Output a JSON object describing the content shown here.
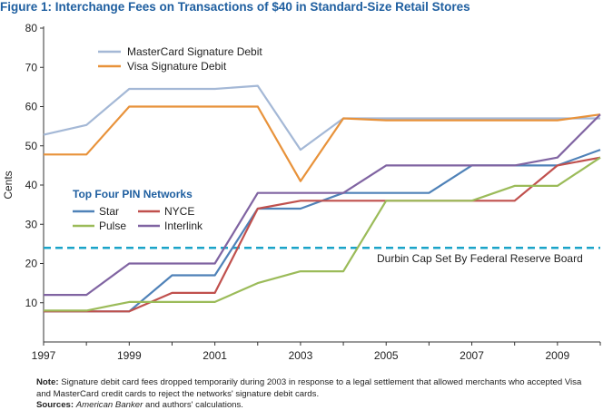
{
  "title": "Figure 1: Interchange Fees on Transactions of $40 in Standard-Size Retail Stores",
  "note_label": "Note:",
  "note_text": "Signature debit card fees dropped temporarily during 2003 in response to a legal settlement that allowed merchants who accepted Visa and MasterCard credit cards to reject the networks' signature debit cards.",
  "sources_label": "Sources:",
  "sources_italic": "American Banker",
  "sources_rest": "and authors' calculations.",
  "colors": {
    "mastercard": "#a4b8d6",
    "visa": "#e8923a",
    "star": "#4f82b8",
    "nyce": "#c0504d",
    "pulse": "#9bbb59",
    "interlink": "#8064a2",
    "durbin": "#1aa3c8",
    "axis": "#333333",
    "legend_title": "#1f5fa0"
  },
  "chart_data": {
    "type": "line",
    "title": "Figure 1: Interchange Fees on Transactions of $40 in Standard-Size Retail Stores",
    "xlabel": "",
    "ylabel": "Cents",
    "xlim": [
      1997,
      2010
    ],
    "ylim": [
      0,
      80
    ],
    "x_ticks": [
      1997,
      1999,
      2001,
      2003,
      2005,
      2007,
      2009
    ],
    "y_ticks": [
      10,
      20,
      30,
      40,
      50,
      60,
      70,
      80
    ],
    "grid": false,
    "series": [
      {
        "name": "MasterCard Signature Debit",
        "color_key": "mastercard",
        "x": [
          1997,
          1998,
          1999,
          2000,
          2001,
          2002,
          2003,
          2004,
          2005,
          2006,
          2007,
          2008,
          2009,
          2010
        ],
        "y": [
          52.8,
          55.3,
          64.5,
          64.5,
          64.5,
          65.3,
          49,
          57,
          57,
          57,
          57,
          57,
          57,
          57
        ]
      },
      {
        "name": "Visa Signature Debit",
        "color_key": "visa",
        "x": [
          1997,
          1998,
          1999,
          2000,
          2001,
          2002,
          2003,
          2004,
          2005,
          2006,
          2007,
          2008,
          2009,
          2010
        ],
        "y": [
          47.8,
          47.8,
          60,
          60,
          60,
          60,
          41,
          57,
          56.5,
          56.5,
          56.5,
          56.5,
          56.5,
          58
        ]
      },
      {
        "name": "Star",
        "color_key": "star",
        "x": [
          1997,
          1998,
          1999,
          2000,
          2001,
          2002,
          2003,
          2004,
          2005,
          2006,
          2007,
          2008,
          2009,
          2010
        ],
        "y": [
          7.8,
          7.8,
          7.8,
          17,
          17,
          34,
          34,
          38,
          38,
          38,
          45,
          45,
          45,
          49
        ]
      },
      {
        "name": "NYCE",
        "color_key": "nyce",
        "x": [
          1997,
          1998,
          1999,
          2000,
          2001,
          2002,
          2003,
          2004,
          2005,
          2006,
          2007,
          2008,
          2009,
          2010
        ],
        "y": [
          7.8,
          7.8,
          7.8,
          12.5,
          12.5,
          34,
          36,
          36,
          36,
          36,
          36,
          36,
          45,
          47
        ]
      },
      {
        "name": "Pulse",
        "color_key": "pulse",
        "x": [
          1997,
          1998,
          1999,
          2000,
          2001,
          2002,
          2003,
          2004,
          2005,
          2006,
          2007,
          2008,
          2009,
          2010
        ],
        "y": [
          8,
          8,
          10.2,
          10.2,
          10.2,
          15,
          18,
          18,
          36,
          36,
          36,
          39.8,
          39.8,
          47
        ]
      },
      {
        "name": "Interlink",
        "color_key": "interlink",
        "x": [
          1997,
          1998,
          1999,
          2000,
          2001,
          2002,
          2003,
          2004,
          2005,
          2006,
          2007,
          2008,
          2009,
          2010
        ],
        "y": [
          12,
          12,
          20,
          20,
          20,
          38,
          38,
          38,
          45,
          45,
          45,
          45,
          47,
          58
        ]
      }
    ],
    "reference_line": {
      "y": 24,
      "label": "Durbin Cap Set By Federal Reserve Board",
      "color_key": "durbin"
    },
    "legend_top": {
      "entries": [
        "MasterCard Signature Debit",
        "Visa Signature Debit"
      ]
    },
    "legend_pin": {
      "title": "Top Four PIN Networks",
      "entries": [
        "Star",
        "NYCE",
        "Pulse",
        "Interlink"
      ]
    }
  }
}
